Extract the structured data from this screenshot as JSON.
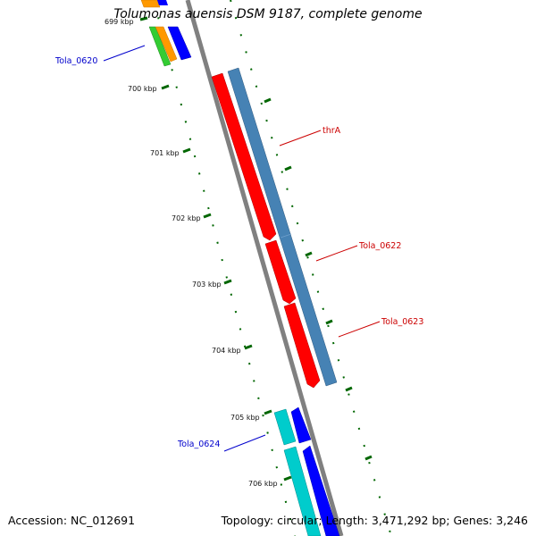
{
  "title": "Tolumonas auensis DSM 9187, complete genome",
  "footer": {
    "accession": "Accession: NC_012691",
    "summary": "Topology: circular; Length: 3,471,292 bp; Genes: 3,246"
  },
  "ticks": [
    "699 kbp",
    "700 kbp",
    "701 kbp",
    "702 kbp",
    "703 kbp",
    "704 kbp",
    "705 kbp",
    "706 kbp"
  ],
  "genes": [
    {
      "name": "Tola_0620",
      "label_color": "#0000cc",
      "side": "left"
    },
    {
      "name": "thrA",
      "label_color": "#cc0000",
      "side": "right"
    },
    {
      "name": "Tola_0622",
      "label_color": "#cc0000",
      "side": "right"
    },
    {
      "name": "Tola_0623",
      "label_color": "#cc0000",
      "side": "right"
    },
    {
      "name": "Tola_0624",
      "label_color": "#0000cc",
      "side": "left"
    }
  ],
  "colors": {
    "backbone": "#808080",
    "tick": "#006600",
    "cds_red": "#ff0000",
    "cds_steel": "#4682b4",
    "cds_blue": "#0000ff",
    "cds_cyan": "#00cccc",
    "cds_green": "#33cc33",
    "cds_orange": "#ff9900"
  }
}
